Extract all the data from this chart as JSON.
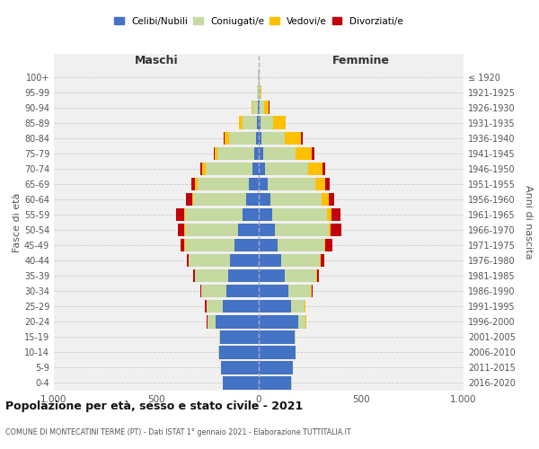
{
  "age_groups": [
    "0-4",
    "5-9",
    "10-14",
    "15-19",
    "20-24",
    "25-29",
    "30-34",
    "35-39",
    "40-44",
    "45-49",
    "50-54",
    "55-59",
    "60-64",
    "65-69",
    "70-74",
    "75-79",
    "80-84",
    "85-89",
    "90-94",
    "95-99",
    "100+"
  ],
  "birth_years": [
    "2016-2020",
    "2011-2015",
    "2006-2010",
    "2001-2005",
    "1996-2000",
    "1991-1995",
    "1986-1990",
    "1981-1985",
    "1976-1980",
    "1971-1975",
    "1966-1970",
    "1961-1965",
    "1956-1960",
    "1951-1955",
    "1946-1950",
    "1941-1945",
    "1936-1940",
    "1931-1935",
    "1926-1930",
    "1921-1925",
    "≤ 1920"
  ],
  "male": {
    "celibi": [
      175,
      185,
      195,
      190,
      210,
      175,
      160,
      150,
      140,
      120,
      100,
      80,
      60,
      50,
      30,
      20,
      15,
      10,
      5,
      2,
      2
    ],
    "coniugati": [
      1,
      1,
      2,
      5,
      40,
      80,
      120,
      160,
      200,
      240,
      260,
      280,
      260,
      250,
      230,
      180,
      130,
      70,
      25,
      5,
      1
    ],
    "vedovi": [
      0,
      0,
      0,
      0,
      1,
      1,
      1,
      1,
      2,
      2,
      3,
      5,
      5,
      10,
      15,
      15,
      20,
      15,
      5,
      2,
      0
    ],
    "divorziati": [
      0,
      0,
      0,
      0,
      3,
      5,
      5,
      10,
      10,
      20,
      30,
      40,
      30,
      20,
      10,
      5,
      5,
      2,
      1,
      0,
      0
    ]
  },
  "female": {
    "nubili": [
      160,
      165,
      180,
      175,
      195,
      160,
      145,
      125,
      110,
      90,
      80,
      65,
      55,
      45,
      30,
      20,
      15,
      10,
      5,
      2,
      2
    ],
    "coniugate": [
      1,
      1,
      2,
      5,
      35,
      65,
      110,
      155,
      190,
      230,
      260,
      270,
      250,
      230,
      210,
      160,
      110,
      60,
      20,
      5,
      1
    ],
    "vedove": [
      0,
      0,
      0,
      0,
      1,
      2,
      2,
      3,
      4,
      5,
      10,
      20,
      35,
      50,
      70,
      80,
      80,
      60,
      25,
      5,
      2
    ],
    "divorziate": [
      0,
      0,
      0,
      0,
      2,
      3,
      5,
      10,
      15,
      35,
      55,
      45,
      30,
      20,
      15,
      10,
      8,
      3,
      1,
      0,
      0
    ]
  },
  "colors": {
    "celibi": "#4472c4",
    "coniugati": "#c5d9a0",
    "vedovi": "#ffc000",
    "divorziati": "#c0000c"
  },
  "legend_labels": [
    "Celibi/Nubili",
    "Coniugati/e",
    "Vedovi/e",
    "Divorziati/e"
  ],
  "title": "Popolazione per età, sesso e stato civile - 2021",
  "subtitle": "COMUNE DI MONTECATINI TERME (PT) - Dati ISTAT 1° gennaio 2021 - Elaborazione TUTTITALIA.IT",
  "xlabel_left": "Maschi",
  "xlabel_right": "Femmine",
  "ylabel_left": "Fasce di età",
  "ylabel_right": "Anni di nascita",
  "xlim": 1000,
  "xticklabels": [
    "1.000",
    "500",
    "0",
    "500",
    "1.000"
  ],
  "bg_color": "#f0f0f0"
}
